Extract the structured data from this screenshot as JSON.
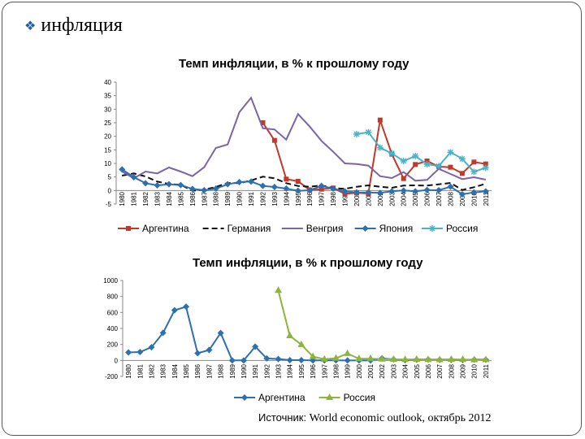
{
  "slide": {
    "heading": "инфляция",
    "source_label": "Источник:",
    "source_text": "World economic outlook, октябрь 2012"
  },
  "chart_data": [
    {
      "type": "line",
      "title": "Темп инфляции,  в % к прошлому году",
      "xlabel": "",
      "ylabel": "",
      "ylim": [
        -5,
        40
      ],
      "yticks": [
        "-5",
        "0",
        "5",
        "10",
        "15",
        "20",
        "25",
        "30",
        "35",
        "40"
      ],
      "x": [
        "1980",
        "1981",
        "1982",
        "1983",
        "1984",
        "1985",
        "1986",
        "1987",
        "1988",
        "1989",
        "1990",
        "1991",
        "1992",
        "1993",
        "1994",
        "1995",
        "1996",
        "1997",
        "1998",
        "1999",
        "2000",
        "2001",
        "2002",
        "2003",
        "2004",
        "2005",
        "2006",
        "2007",
        "2008",
        "2009",
        "2010",
        "2011"
      ],
      "legend_position": "bottom",
      "series": [
        {
          "name": "Аргентина",
          "color": "#c0392b",
          "marker": "square",
          "dash": false,
          "values": [
            null,
            null,
            null,
            null,
            null,
            null,
            null,
            null,
            null,
            null,
            null,
            null,
            25,
            18.5,
            4.2,
            3.4,
            0.2,
            0.5,
            0.9,
            -1.2,
            -0.9,
            -1.1,
            26,
            13.4,
            4.4,
            9.6,
            10.9,
            8.8,
            8.6,
            6.3,
            10.5,
            9.8
          ]
        },
        {
          "name": "Германия",
          "color": "#111111",
          "marker": "none",
          "dash": true,
          "values": [
            5.5,
            6.3,
            5.2,
            3.3,
            2.4,
            2.1,
            -0.1,
            0.3,
            1.3,
            2.8,
            2.7,
            3.7,
            5.1,
            4.5,
            2.7,
            1.7,
            1.4,
            1.9,
            0.9,
            0.6,
            1.4,
            1.9,
            1.4,
            1.0,
            1.8,
            1.9,
            1.8,
            2.3,
            2.8,
            0.2,
            1.2,
            2.5
          ]
        },
        {
          "name": "Венгрия",
          "color": "#7b64a6",
          "marker": "none",
          "dash": false,
          "values": [
            7,
            4.5,
            7,
            6.3,
            8.5,
            7,
            5.3,
            8.6,
            15.7,
            17,
            28.9,
            34.2,
            23,
            22.5,
            18.8,
            28.2,
            23.6,
            18.3,
            14.3,
            10,
            9.8,
            9.2,
            5.3,
            4.6,
            6.8,
            3.6,
            3.9,
            8,
            6.1,
            4.2,
            4.9,
            4
          ]
        },
        {
          "name": "Япония",
          "color": "#2e6fae",
          "marker": "diamond",
          "dash": false,
          "values": [
            7.8,
            4.9,
            2.7,
            1.9,
            2.3,
            2,
            0.6,
            0.1,
            0.7,
            2.3,
            3.1,
            3.3,
            1.7,
            1.3,
            0.7,
            -0.1,
            0.1,
            1.7,
            0.7,
            -0.3,
            -0.7,
            -0.7,
            -0.9,
            -0.3,
            0,
            -0.3,
            0.2,
            0.1,
            1.4,
            -1.4,
            -0.7,
            -0.3
          ]
        },
        {
          "name": "Россия",
          "color": "#4ab3c9",
          "marker": "star",
          "dash": false,
          "values": [
            null,
            null,
            null,
            null,
            null,
            null,
            null,
            null,
            null,
            null,
            null,
            null,
            null,
            null,
            null,
            null,
            null,
            null,
            null,
            null,
            20.8,
            21.5,
            15.8,
            13.7,
            10.9,
            12.7,
            9.7,
            9,
            14.1,
            11.7,
            6.9,
            8.4
          ]
        }
      ]
    },
    {
      "type": "line",
      "title": "Темп инфляции,  в % к прошлому году",
      "xlabel": "",
      "ylabel": "",
      "ylim": [
        -200,
        1000
      ],
      "yticks": [
        "-200",
        "0",
        "200",
        "400",
        "600",
        "800",
        "1000"
      ],
      "x": [
        "1980",
        "1981",
        "1982",
        "1983",
        "1984",
        "1985",
        "1986",
        "1987",
        "1988",
        "1989",
        "1990",
        "1991",
        "1992",
        "1993",
        "1994",
        "1995",
        "1996",
        "1997",
        "1998",
        "1999",
        "2000",
        "2001",
        "2002",
        "2003",
        "2004",
        "2005",
        "2006",
        "2007",
        "2008",
        "2009",
        "2010",
        "2011"
      ],
      "legend_position": "bottom",
      "series": [
        {
          "name": "Аргентина",
          "color": "#2e6fae",
          "marker": "diamond",
          "dash": false,
          "values": [
            100,
            105,
            165,
            345,
            627,
            672,
            90,
            131,
            343,
            0,
            0,
            172,
            25,
            18,
            4,
            3,
            0,
            1,
            1,
            -1,
            -1,
            -1,
            26,
            13,
            4,
            10,
            11,
            9,
            9,
            6,
            10,
            10
          ]
        },
        {
          "name": "Россия",
          "color": "#8db43e",
          "marker": "triangle",
          "dash": false,
          "values": [
            null,
            null,
            null,
            null,
            null,
            null,
            null,
            null,
            null,
            null,
            null,
            null,
            null,
            875,
            308,
            198,
            48,
            15,
            28,
            86,
            21,
            22,
            16,
            14,
            11,
            13,
            10,
            9,
            14,
            12,
            7,
            8
          ]
        }
      ]
    }
  ]
}
